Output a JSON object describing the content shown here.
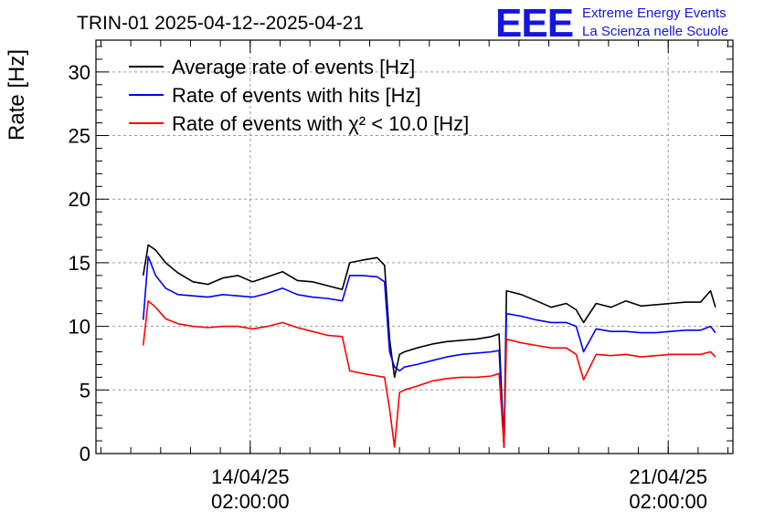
{
  "header": {
    "title": "TRIN-01 2025-04-12--2025-04-21",
    "logo_text": "EEE",
    "logo_line1": "Extreme Energy Events",
    "logo_line2": "La Scienza nelle Scuole"
  },
  "chart_data": {
    "type": "line",
    "title": "TRIN-01 2025-04-12--2025-04-21",
    "ylabel": "Rate [Hz]",
    "xlabel": "",
    "ylim": [
      0,
      32.5
    ],
    "xlim": [
      "2025-04-11T12:00:00",
      "2025-04-22T04:00:00"
    ],
    "grid": true,
    "legend_position": "top-left",
    "y_ticks": [
      "0",
      "5",
      "10",
      "15",
      "20",
      "25",
      "30"
    ],
    "x_ticks": [
      {
        "x": "2025-04-14T02:00:00",
        "date": "14/04/25",
        "time": "02:00:00"
      },
      {
        "x": "2025-04-21T02:00:00",
        "date": "21/04/25",
        "time": "02:00:00"
      }
    ],
    "series": [
      {
        "name": "Average rate of events [Hz]",
        "color": "#000000",
        "x": [
          "2025-04-12T07:00",
          "2025-04-12T09:00",
          "2025-04-12T12:00",
          "2025-04-12T16:00",
          "2025-04-12T21:00",
          "2025-04-13T03:00",
          "2025-04-13T09:00",
          "2025-04-13T15:00",
          "2025-04-13T21:00",
          "2025-04-14T03:00",
          "2025-04-14T09:00",
          "2025-04-14T15:00",
          "2025-04-14T21:00",
          "2025-04-15T03:00",
          "2025-04-15T09:00",
          "2025-04-15T15:00",
          "2025-04-15T18:00",
          "2025-04-15T23:00",
          "2025-04-16T05:00",
          "2025-04-16T08:00",
          "2025-04-16T10:00",
          "2025-04-16T12:00",
          "2025-04-16T14:00",
          "2025-04-16T16:00",
          "2025-04-16T21:00",
          "2025-04-17T03:00",
          "2025-04-17T09:00",
          "2025-04-17T15:00",
          "2025-04-17T21:00",
          "2025-04-18T03:00",
          "2025-04-18T06:00",
          "2025-04-18T08:00",
          "2025-04-18T09:00",
          "2025-04-18T15:00",
          "2025-04-18T21:00",
          "2025-04-19T03:00",
          "2025-04-19T09:00",
          "2025-04-19T13:00",
          "2025-04-19T16:00",
          "2025-04-19T21:00",
          "2025-04-20T03:00",
          "2025-04-20T09:00",
          "2025-04-20T15:00",
          "2025-04-20T21:00",
          "2025-04-21T03:00",
          "2025-04-21T09:00",
          "2025-04-21T15:00",
          "2025-04-21T19:00",
          "2025-04-21T21:00"
        ],
        "y": [
          14.0,
          16.4,
          16.0,
          15.0,
          14.2,
          13.5,
          13.3,
          13.8,
          14.0,
          13.5,
          13.9,
          14.3,
          13.6,
          13.5,
          13.2,
          12.9,
          15.0,
          15.2,
          15.4,
          14.8,
          9.0,
          6.0,
          7.8,
          8.0,
          8.3,
          8.6,
          8.8,
          8.9,
          9.0,
          9.2,
          9.4,
          0.5,
          12.8,
          12.5,
          12.0,
          11.5,
          11.8,
          11.3,
          10.3,
          11.8,
          11.5,
          12.0,
          11.6,
          11.7,
          11.8,
          11.9,
          11.9,
          12.8,
          11.5
        ]
      },
      {
        "name": "Rate of events with hits [Hz]",
        "color": "#0000ff",
        "x": [
          "2025-04-12T07:00",
          "2025-04-12T09:00",
          "2025-04-12T12:00",
          "2025-04-12T16:00",
          "2025-04-12T21:00",
          "2025-04-13T03:00",
          "2025-04-13T09:00",
          "2025-04-13T15:00",
          "2025-04-13T21:00",
          "2025-04-14T03:00",
          "2025-04-14T09:00",
          "2025-04-14T15:00",
          "2025-04-14T21:00",
          "2025-04-15T03:00",
          "2025-04-15T09:00",
          "2025-04-15T15:00",
          "2025-04-15T18:00",
          "2025-04-15T23:00",
          "2025-04-16T05:00",
          "2025-04-16T08:00",
          "2025-04-16T10:00",
          "2025-04-16T12:00",
          "2025-04-16T14:00",
          "2025-04-16T16:00",
          "2025-04-16T21:00",
          "2025-04-17T03:00",
          "2025-04-17T09:00",
          "2025-04-17T15:00",
          "2025-04-17T21:00",
          "2025-04-18T03:00",
          "2025-04-18T06:00",
          "2025-04-18T08:00",
          "2025-04-18T09:00",
          "2025-04-18T15:00",
          "2025-04-18T21:00",
          "2025-04-19T03:00",
          "2025-04-19T09:00",
          "2025-04-19T13:00",
          "2025-04-19T16:00",
          "2025-04-19T21:00",
          "2025-04-20T03:00",
          "2025-04-20T09:00",
          "2025-04-20T15:00",
          "2025-04-20T21:00",
          "2025-04-21T03:00",
          "2025-04-21T09:00",
          "2025-04-21T15:00",
          "2025-04-21T19:00",
          "2025-04-21T21:00"
        ],
        "y": [
          10.5,
          15.5,
          14.0,
          13.0,
          12.5,
          12.4,
          12.3,
          12.5,
          12.4,
          12.3,
          12.6,
          13.0,
          12.5,
          12.3,
          12.2,
          12.0,
          14.0,
          14.0,
          13.9,
          13.5,
          8.0,
          6.8,
          6.5,
          6.8,
          7.0,
          7.3,
          7.6,
          7.8,
          7.9,
          8.0,
          8.1,
          0.5,
          11.0,
          10.8,
          10.5,
          10.3,
          10.3,
          10.0,
          8.0,
          9.8,
          9.6,
          9.6,
          9.5,
          9.5,
          9.6,
          9.7,
          9.7,
          10.0,
          9.5
        ]
      },
      {
        "name": "Rate of events with χ² < 10.0 [Hz]",
        "color": "#ff0000",
        "x": [
          "2025-04-12T07:00",
          "2025-04-12T09:00",
          "2025-04-12T12:00",
          "2025-04-12T16:00",
          "2025-04-12T21:00",
          "2025-04-13T03:00",
          "2025-04-13T09:00",
          "2025-04-13T15:00",
          "2025-04-13T21:00",
          "2025-04-14T03:00",
          "2025-04-14T09:00",
          "2025-04-14T15:00",
          "2025-04-14T21:00",
          "2025-04-15T03:00",
          "2025-04-15T09:00",
          "2025-04-15T15:00",
          "2025-04-15T18:00",
          "2025-04-15T23:00",
          "2025-04-16T05:00",
          "2025-04-16T08:00",
          "2025-04-16T10:00",
          "2025-04-16T12:00",
          "2025-04-16T14:00",
          "2025-04-16T16:00",
          "2025-04-16T21:00",
          "2025-04-17T03:00",
          "2025-04-17T09:00",
          "2025-04-17T15:00",
          "2025-04-17T21:00",
          "2025-04-18T03:00",
          "2025-04-18T06:00",
          "2025-04-18T08:00",
          "2025-04-18T09:00",
          "2025-04-18T15:00",
          "2025-04-18T21:00",
          "2025-04-19T03:00",
          "2025-04-19T09:00",
          "2025-04-19T13:00",
          "2025-04-19T16:00",
          "2025-04-19T21:00",
          "2025-04-20T03:00",
          "2025-04-20T09:00",
          "2025-04-20T15:00",
          "2025-04-20T21:00",
          "2025-04-21T03:00",
          "2025-04-21T09:00",
          "2025-04-21T15:00",
          "2025-04-21T19:00",
          "2025-04-21T21:00"
        ],
        "y": [
          8.5,
          12.0,
          11.5,
          10.6,
          10.2,
          10.0,
          9.9,
          10.0,
          10.0,
          9.8,
          10.0,
          10.3,
          9.9,
          9.6,
          9.3,
          9.2,
          6.5,
          6.3,
          6.1,
          6.0,
          3.5,
          0.5,
          4.8,
          5.0,
          5.3,
          5.7,
          5.9,
          6.0,
          6.0,
          6.1,
          6.3,
          0.5,
          9.0,
          8.7,
          8.5,
          8.3,
          8.3,
          7.8,
          5.8,
          7.8,
          7.7,
          7.8,
          7.6,
          7.7,
          7.8,
          7.8,
          7.8,
          8.0,
          7.6
        ]
      }
    ]
  }
}
